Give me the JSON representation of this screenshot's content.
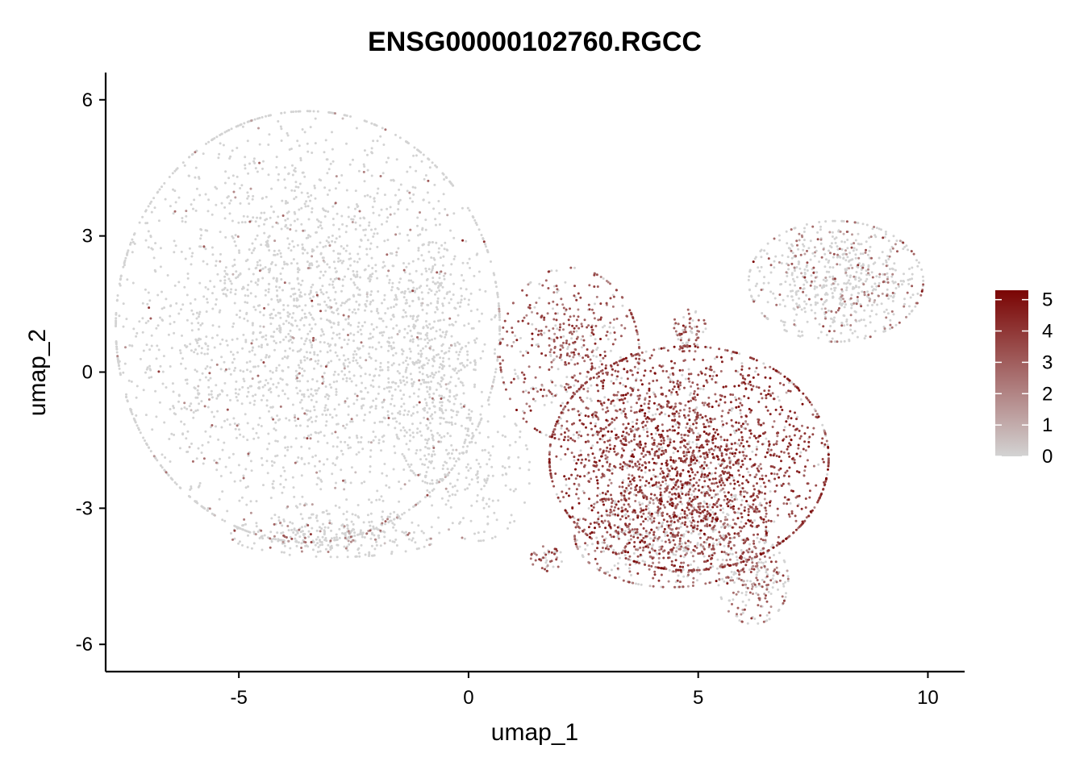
{
  "chart_data": {
    "type": "scatter",
    "title": "ENSG00000102760.RGCC",
    "xlabel": "umap_1",
    "ylabel": "umap_2",
    "xlim": [
      -7.9,
      10.8
    ],
    "ylim": [
      -6.6,
      6.6
    ],
    "x_ticks": [
      -5,
      0,
      5,
      10
    ],
    "x_tick_labels": [
      "-5",
      "0",
      "5",
      "10"
    ],
    "y_ticks": [
      -6,
      -3,
      0,
      3,
      6
    ],
    "y_tick_labels": [
      "-6",
      "-3",
      "0",
      "3",
      "6"
    ],
    "grid": false,
    "legend_position": "right",
    "color_scale": {
      "low_color": "#d3d3d3",
      "high_color": "#7a0403",
      "min": 0,
      "max": 5.3,
      "ticks": [
        0,
        1,
        2,
        3,
        4,
        5
      ],
      "tick_labels": [
        "0",
        "1",
        "2",
        "3",
        "4",
        "5"
      ]
    },
    "clusters": [
      {
        "name": "left-main-blob",
        "cx": -3.5,
        "cy": 1.0,
        "sx": 2.2,
        "sy": 2.5,
        "n": 2600,
        "expr_prob": 0.06,
        "expr_mean": 2.0
      },
      {
        "name": "left-bottom-arc",
        "cx": -2.9,
        "cy": -3.6,
        "sx": 1.2,
        "sy": 0.25,
        "n": 300,
        "expr_prob": 0.15,
        "expr_mean": 2.2
      },
      {
        "name": "left-stream",
        "cx": -0.8,
        "cy": 0.2,
        "sx": 0.5,
        "sy": 1.4,
        "n": 420,
        "expr_prob": 0.04,
        "expr_mean": 1.8
      },
      {
        "name": "gap-stream",
        "cx": 0.2,
        "cy": -2.2,
        "sx": 0.6,
        "sy": 0.8,
        "n": 160,
        "expr_prob": 0.03,
        "expr_mean": 1.5
      },
      {
        "name": "right-main-blob",
        "cx": 4.8,
        "cy": -1.9,
        "sx": 1.6,
        "sy": 1.3,
        "n": 2300,
        "expr_prob": 0.85,
        "expr_mean": 3.6
      },
      {
        "name": "right-lower",
        "cx": 4.4,
        "cy": -3.6,
        "sx": 1.1,
        "sy": 0.6,
        "n": 650,
        "expr_prob": 0.6,
        "expr_mean": 3.0
      },
      {
        "name": "right-upper-left",
        "cx": 2.2,
        "cy": 0.4,
        "sx": 0.8,
        "sy": 1.0,
        "n": 500,
        "expr_prob": 0.75,
        "expr_mean": 3.2
      },
      {
        "name": "right-tail",
        "cx": 6.2,
        "cy": -4.6,
        "sx": 0.4,
        "sy": 0.5,
        "n": 220,
        "expr_prob": 0.45,
        "expr_mean": 2.5
      },
      {
        "name": "right-top-arm",
        "cx": 8.0,
        "cy": 2.0,
        "sx": 1.0,
        "sy": 0.7,
        "n": 700,
        "expr_prob": 0.25,
        "expr_mean": 2.4
      },
      {
        "name": "small-island",
        "cx": 4.8,
        "cy": 0.9,
        "sx": 0.2,
        "sy": 0.25,
        "n": 70,
        "expr_prob": 0.7,
        "expr_mean": 3.0
      },
      {
        "name": "small-cluster-bottom",
        "cx": 1.7,
        "cy": -4.1,
        "sx": 0.18,
        "sy": 0.15,
        "n": 45,
        "expr_prob": 0.8,
        "expr_mean": 3.0
      }
    ]
  }
}
